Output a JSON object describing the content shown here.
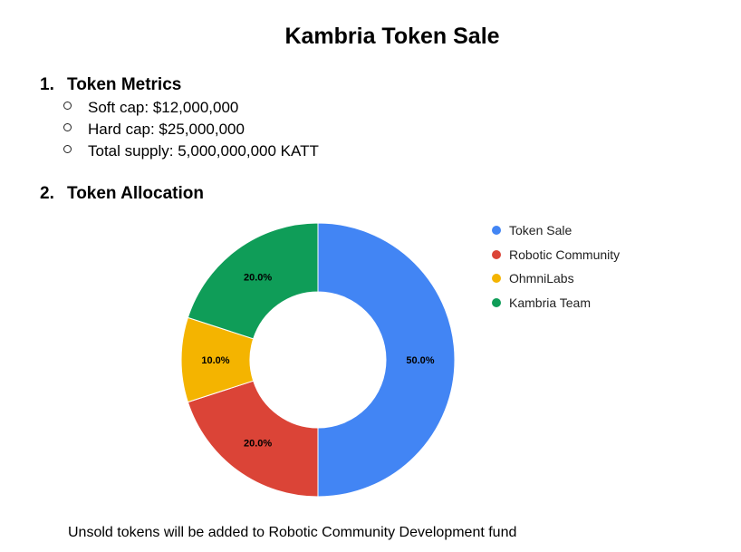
{
  "document": {
    "title": "Kambria Token Sale",
    "sections": [
      {
        "number": "1.",
        "heading": "Token Metrics",
        "bullets": [
          "Soft cap: $12,000,000",
          "Hard cap: $25,000,000",
          "Total supply: 5,000,000,000 KATT"
        ]
      },
      {
        "number": "2.",
        "heading": "Token Allocation"
      }
    ],
    "footnote": "Unsold tokens will be added to Robotic Community Development fund"
  },
  "chart_data": {
    "type": "pie",
    "subtype": "donut",
    "legend_position": "right",
    "series": [
      {
        "name": "Token Sale",
        "value": 50.0,
        "label": "50.0%",
        "color": "#4285f4"
      },
      {
        "name": "Robotic Community",
        "value": 20.0,
        "label": "20.0%",
        "color": "#db4437"
      },
      {
        "name": "OhmniLabs",
        "value": 10.0,
        "label": "10.0%",
        "color": "#f4b400"
      },
      {
        "name": "Kambria Team",
        "value": 20.0,
        "label": "20.0%",
        "color": "#0f9d58"
      }
    ]
  }
}
